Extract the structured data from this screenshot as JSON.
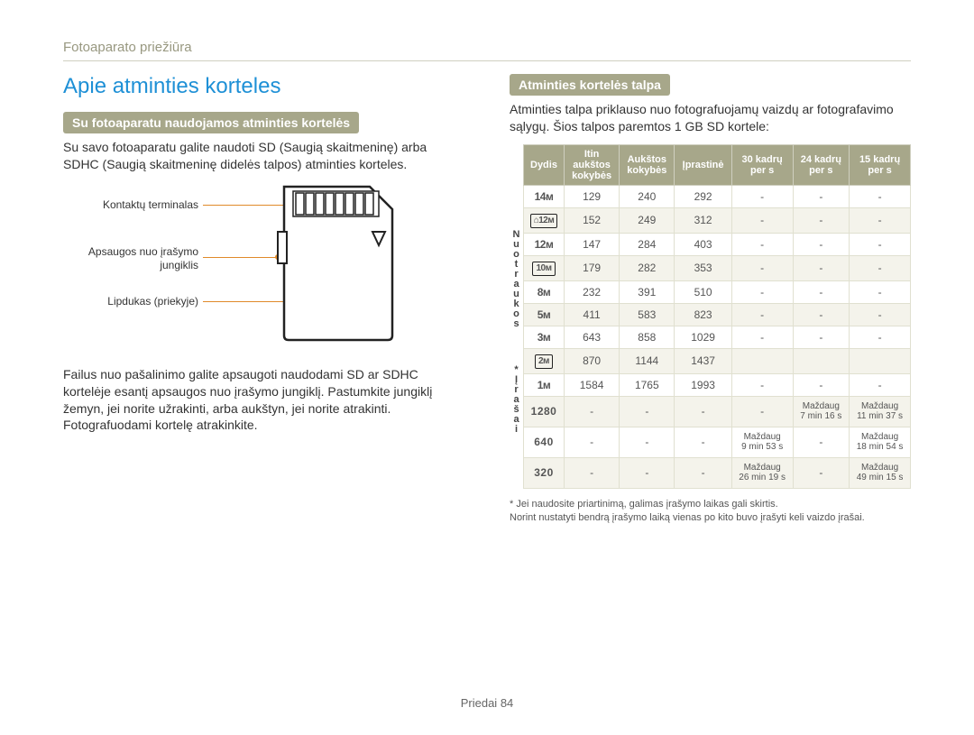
{
  "header": {
    "section": "Fotoaparato priežiūra"
  },
  "left": {
    "title": "Apie atminties korteles",
    "sub1": "Su fotoaparatu naudojamos atminties kortelės",
    "p1": "Su savo fotoaparatu galite naudoti SD (Saugią skaitmeninę) arba SDHC (Saugią skaitmeninę didelės talpos) atminties korteles.",
    "label_terminal": "Kontaktų terminalas",
    "label_switch": "Apsaugos nuo įrašymo jungiklis",
    "label_front": "Lipdukas (priekyje)",
    "p2": "Failus nuo pašalinimo galite apsaugoti naudodami SD ar SDHC kortelėje esantį apsaugos nuo įrašymo jungiklį. Pastumkite jungiklį žemyn, jei norite užrakinti, arba aukštyn, jei norite atrakinti. Fotografuodami kortelę atrakinkite."
  },
  "right": {
    "sub1": "Atminties kortelės talpa",
    "p1": "Atminties talpa priklauso nuo fotografuojamų vaizdų ar fotografavimo sąlygų. Šios talpos paremtos 1 GB SD kortele:",
    "side1": "Nuotraukos",
    "side2": "*Įrašai",
    "table": {
      "headers": [
        "Dydis",
        "Itin aukštos kokybės",
        "Aukštos kokybės",
        "Įprastinė",
        "30 kadrų per s",
        "24 kadrų per s",
        "15 kadrų per s"
      ],
      "photo_rows": [
        {
          "size": "14ᴍ",
          "v": [
            "129",
            "240",
            "292",
            "-",
            "-",
            "-"
          ]
        },
        {
          "size": "⌂12ᴍ",
          "boxed": true,
          "v": [
            "152",
            "249",
            "312",
            "-",
            "-",
            "-"
          ]
        },
        {
          "size": "12ᴍ",
          "v": [
            "147",
            "284",
            "403",
            "-",
            "-",
            "-"
          ]
        },
        {
          "size": "10ᴍ",
          "boxed": true,
          "v": [
            "179",
            "282",
            "353",
            "-",
            "-",
            "-"
          ]
        },
        {
          "size": "8ᴍ",
          "v": [
            "232",
            "391",
            "510",
            "-",
            "-",
            "-"
          ]
        },
        {
          "size": "5ᴍ",
          "v": [
            "411",
            "583",
            "823",
            "-",
            "-",
            "-"
          ]
        },
        {
          "size": "3ᴍ",
          "v": [
            "643",
            "858",
            "1029",
            "-",
            "-",
            "-"
          ]
        },
        {
          "size": "2ᴍ",
          "boxed": true,
          "v": [
            "870",
            "1144",
            "1437",
            "",
            "",
            ""
          ]
        },
        {
          "size": "1ᴍ",
          "v": [
            "1584",
            "1765",
            "1993",
            "-",
            "-",
            "-"
          ]
        }
      ],
      "video_rows": [
        {
          "size": "1280",
          "v": [
            "-",
            "-",
            "-",
            "-",
            "Maždaug 7 min 16 s",
            "Maždaug 11 min 37 s"
          ]
        },
        {
          "size": "640",
          "v": [
            "-",
            "-",
            "-",
            "Maždaug 9 min 53 s",
            "-",
            "Maždaug 18 min 54 s"
          ]
        },
        {
          "size": "320",
          "v": [
            "-",
            "-",
            "-",
            "Maždaug 26 min 19 s",
            "-",
            "Maždaug 49 min 15 s"
          ]
        }
      ]
    },
    "footnote": "* Jei naudosite priartinimą, galimas įrašymo laikas gali skirtis.\nNorint nustatyti bendrą įrašymo laiką vienas po kito buvo įrašyti keli vaizdo įrašai."
  },
  "footer": {
    "label": "Priedai",
    "page": "84"
  },
  "colors": {
    "accent_blue": "#1e90d6",
    "olive": "#a7a78a",
    "lead": "#e08a2a"
  }
}
